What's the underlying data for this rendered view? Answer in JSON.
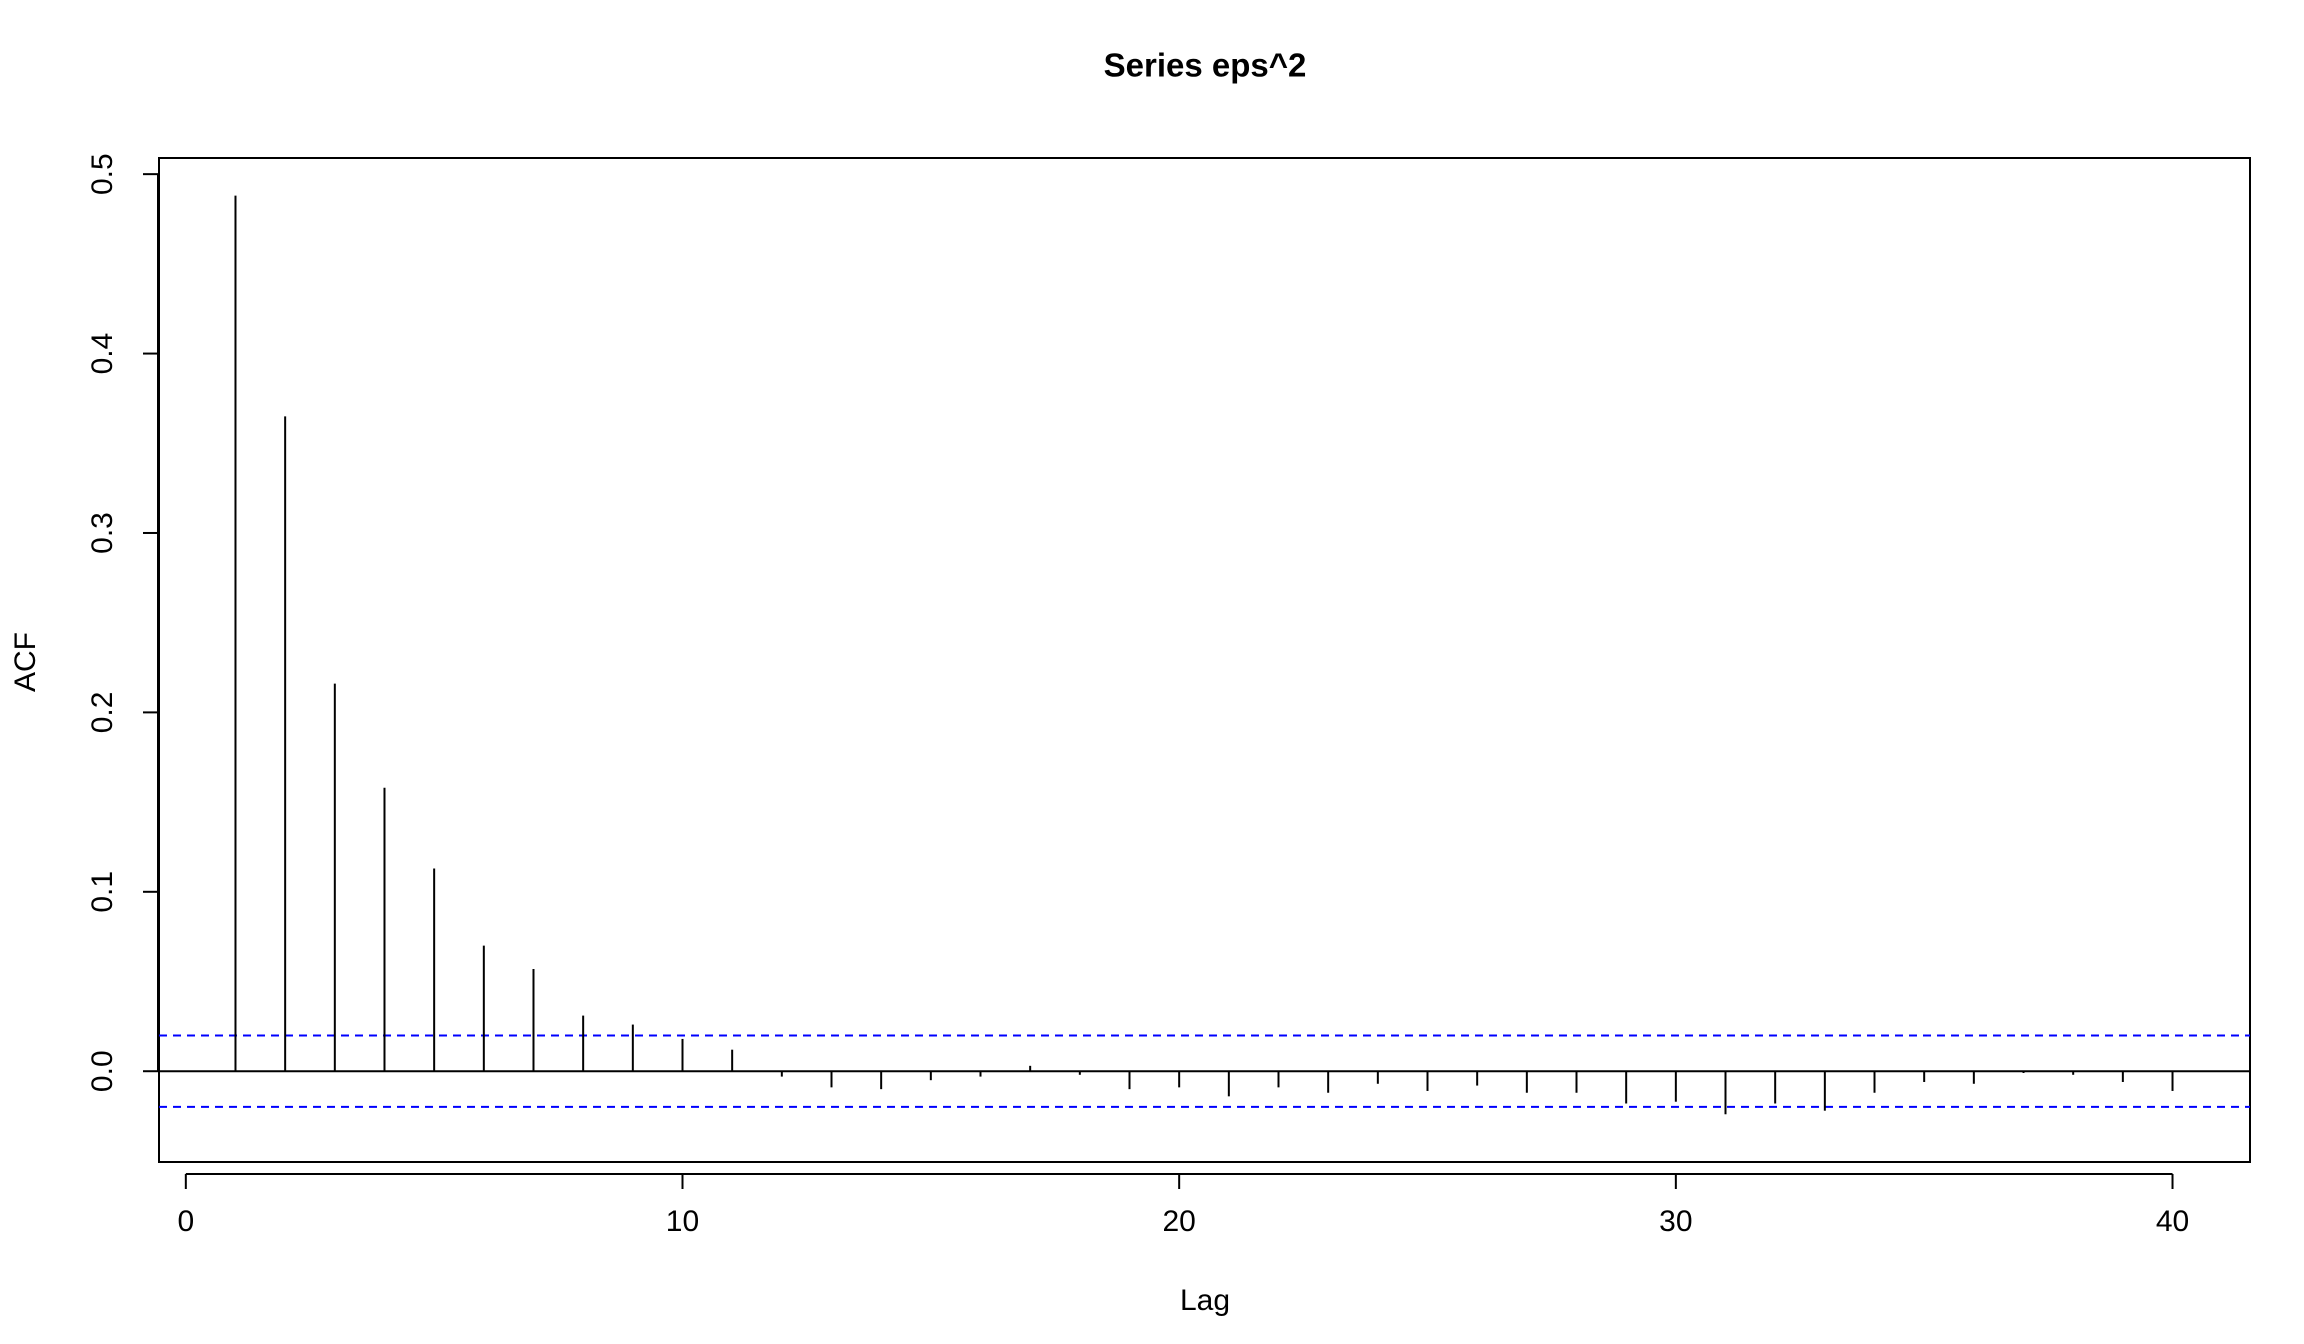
{
  "chart_data": {
    "type": "acf",
    "title": "Series  eps^2",
    "x_label": "Lag",
    "y_label": "ACF",
    "x": [
      1,
      2,
      3,
      4,
      5,
      6,
      7,
      8,
      9,
      10,
      11,
      12,
      13,
      14,
      15,
      16,
      17,
      18,
      19,
      20,
      21,
      22,
      23,
      24,
      25,
      26,
      27,
      28,
      29,
      30,
      31,
      32,
      33,
      34,
      35,
      36,
      37,
      38,
      39,
      40
    ],
    "values": [
      0.488,
      0.365,
      0.216,
      0.158,
      0.113,
      0.07,
      0.057,
      0.031,
      0.026,
      0.018,
      0.012,
      -0.003,
      -0.009,
      -0.01,
      -0.005,
      -0.003,
      0.003,
      -0.002,
      -0.01,
      -0.009,
      -0.014,
      -0.009,
      -0.012,
      -0.007,
      -0.011,
      -0.008,
      -0.012,
      -0.012,
      -0.018,
      -0.017,
      -0.024,
      -0.018,
      -0.022,
      -0.012,
      -0.006,
      -0.007,
      -0.001,
      -0.002,
      -0.006,
      -0.011
    ],
    "color": "#000000",
    "ci_lines": [
      0.0199,
      -0.0199
    ],
    "ci_color": "#0000ff",
    "xlim": [
      -0.54,
      41.56
    ],
    "ylim": [
      -0.0506,
      0.509
    ],
    "xticks": [
      0,
      10,
      20,
      30,
      40
    ],
    "yticks": [
      0.0,
      0.1,
      0.2,
      0.3,
      0.4,
      0.5
    ]
  }
}
